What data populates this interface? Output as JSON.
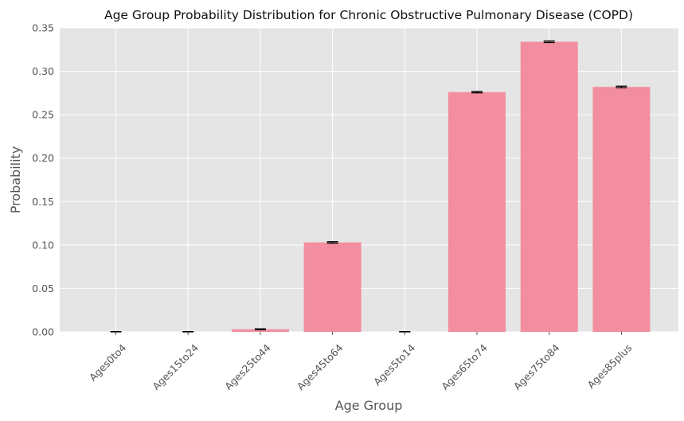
{
  "chart_data": {
    "type": "bar",
    "title": "Age Group Probability Distribution for Chronic Obstructive Pulmonary Disease (COPD)",
    "xlabel": "Age Group",
    "ylabel": "Probability",
    "categories": [
      "Ages0to4",
      "Ages15to24",
      "Ages25to44",
      "Ages45to64",
      "Ages5to14",
      "Ages65to74",
      "Ages75to84",
      "Ages85plus"
    ],
    "values": [
      0.0,
      0.0,
      0.003,
      0.103,
      0.0,
      0.276,
      0.334,
      0.282
    ],
    "errors": [
      0.0003,
      0.0003,
      0.0005,
      0.0008,
      0.0003,
      0.0008,
      0.0009,
      0.0009
    ],
    "ylim": [
      0,
      0.35
    ],
    "yticks": [
      "0.00",
      "0.05",
      "0.10",
      "0.15",
      "0.20",
      "0.25",
      "0.30",
      "0.35"
    ],
    "grid": true,
    "colors": {
      "bar": "#f28e9f",
      "plot_background": "#e5e5e5",
      "grid": "#ffffff",
      "error_bar": "#000000"
    }
  }
}
